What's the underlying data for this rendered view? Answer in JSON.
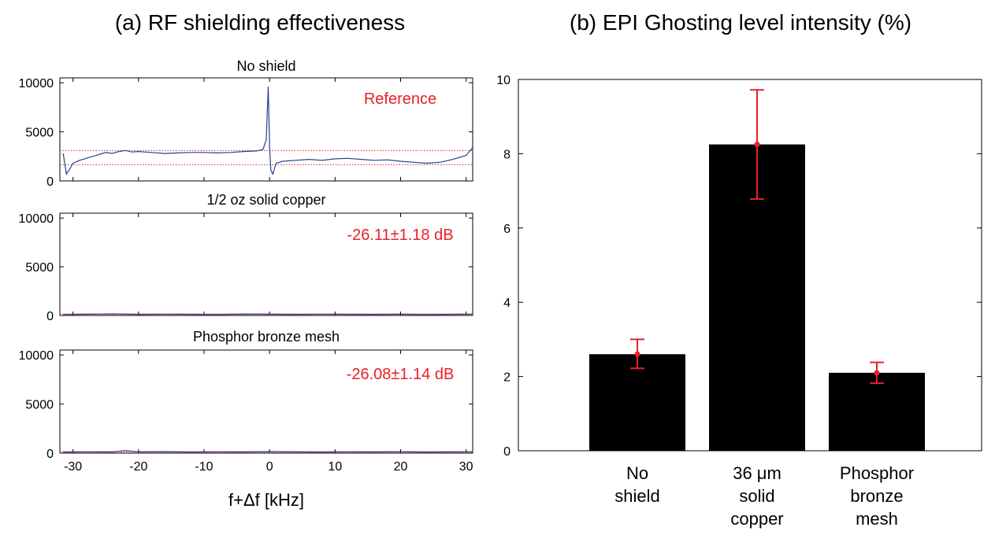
{
  "colors": {
    "trace": "#2c3e8f",
    "reference_lines": "#e8202a",
    "annotation": "#e8202a",
    "bars": "#000000",
    "error_bars": "#e8202a"
  },
  "chart_data": [
    {
      "type": "line",
      "title": "(a) RF shielding effectiveness",
      "xlabel": "f+Δf [kHz]",
      "xlim": [
        -32,
        31
      ],
      "xticks": [
        -30,
        -20,
        -10,
        0,
        10,
        20,
        30
      ],
      "grid": false,
      "panels": [
        {
          "subtitle": "No shield",
          "annotation": "Reference",
          "ylim": [
            0,
            10500
          ],
          "yticks": [
            0,
            5000,
            10000
          ],
          "reference_lines": [
            3100,
            1650
          ],
          "x": [
            -31.5,
            -31,
            -30.5,
            -30,
            -29,
            -28,
            -27,
            -26,
            -25,
            -24,
            -23,
            -22,
            -21,
            -20,
            -18,
            -16,
            -14,
            -12,
            -10,
            -8,
            -6,
            -4,
            -2,
            -1,
            -0.5,
            -0.2,
            0,
            0.2,
            0.5,
            1,
            2,
            4,
            6,
            8,
            10,
            12,
            14,
            16,
            18,
            20,
            22,
            24,
            26,
            28,
            30,
            31
          ],
          "y": [
            2800,
            700,
            1200,
            1800,
            2100,
            2300,
            2500,
            2700,
            2900,
            2800,
            3000,
            3100,
            2950,
            3000,
            2900,
            2800,
            2850,
            2900,
            2900,
            2850,
            2900,
            3000,
            3050,
            3200,
            4200,
            9600,
            3500,
            1100,
            700,
            1800,
            2000,
            2100,
            2200,
            2100,
            2250,
            2300,
            2200,
            2100,
            2150,
            2000,
            1900,
            1800,
            1900,
            2200,
            2600,
            3400
          ]
        },
        {
          "subtitle": "1/2 oz solid copper",
          "annotation": "-26.11±1.18 dB",
          "ylim": [
            0,
            10500
          ],
          "yticks": [
            0,
            5000,
            10000
          ],
          "reference_lines": [
            150,
            40
          ],
          "x": [
            -31.5,
            -28,
            -24,
            -20,
            -16,
            -12,
            -8,
            -4,
            0,
            4,
            8,
            12,
            16,
            20,
            24,
            28,
            31
          ],
          "y": [
            100,
            130,
            160,
            110,
            140,
            120,
            100,
            150,
            130,
            110,
            140,
            120,
            110,
            130,
            100,
            120,
            140
          ]
        },
        {
          "subtitle": "Phosphor bronze mesh",
          "annotation": "-26.08±1.14 dB",
          "ylim": [
            0,
            10500
          ],
          "yticks": [
            0,
            5000,
            10000
          ],
          "reference_lines": [
            150,
            40
          ],
          "x": [
            -31.5,
            -28,
            -24,
            -22,
            -20,
            -16,
            -12,
            -8,
            -4,
            0,
            4,
            8,
            12,
            16,
            20,
            24,
            28,
            31
          ],
          "y": [
            110,
            140,
            120,
            260,
            130,
            150,
            110,
            140,
            120,
            160,
            130,
            110,
            140,
            120,
            150,
            110,
            130,
            140
          ]
        }
      ]
    },
    {
      "type": "bar",
      "title": "(b) EPI Ghosting level intensity (%)",
      "categories": [
        [
          "No",
          "shield"
        ],
        [
          "36 μm",
          "solid",
          "copper"
        ],
        [
          "Phosphor",
          "bronze",
          "mesh"
        ]
      ],
      "values": [
        2.6,
        8.25,
        2.1
      ],
      "error_low": [
        2.22,
        6.78,
        1.82
      ],
      "error_high": [
        3.0,
        9.72,
        2.38
      ],
      "ylim": [
        0,
        10
      ],
      "yticks": [
        0,
        2,
        4,
        6,
        8,
        10
      ],
      "grid": false
    }
  ]
}
